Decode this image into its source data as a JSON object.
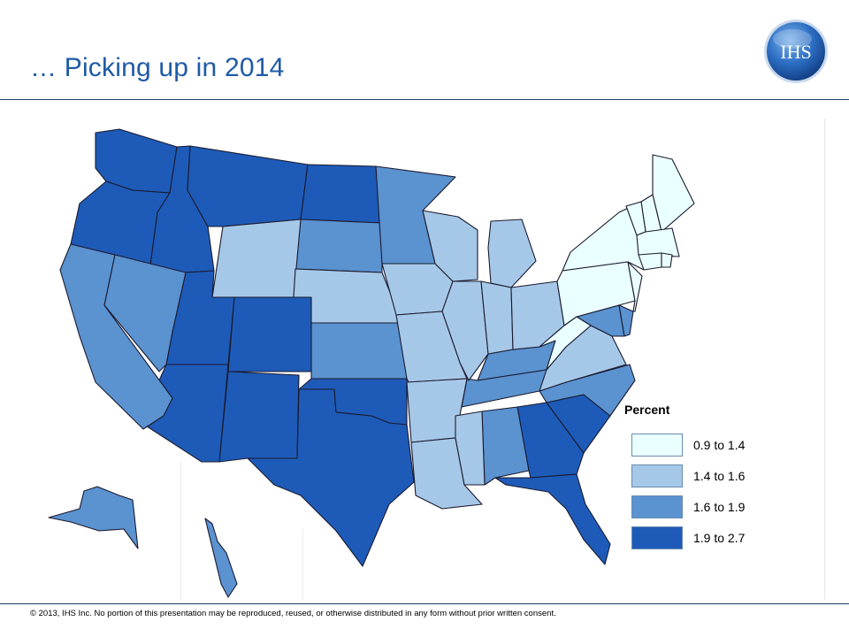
{
  "slide": {
    "title": "… Picking up in 2014",
    "logo_text": "IHS",
    "footer": "© 2013, IHS Inc. No portion of this presentation may be reproduced, reused, or otherwise distributed in any form without prior written consent."
  },
  "legend": {
    "title": "Percent",
    "items": [
      {
        "label": "0.9 to 1.4",
        "color": "#eaffff"
      },
      {
        "label": "1.4 to 1.6",
        "color": "#a6c8e8"
      },
      {
        "label": "1.6 to 1.9",
        "color": "#5b92d0"
      },
      {
        "label": "1.9 to 2.7",
        "color": "#1e5bb8"
      }
    ]
  },
  "map_data": {
    "type": "choropleth",
    "region": "United States",
    "boundary_color": "#1a1a2e",
    "states": {
      "WA": 3,
      "OR": 3,
      "ID": 3,
      "MT": 3,
      "ND": 3,
      "UT": 3,
      "CO": 3,
      "AZ": 3,
      "NM": 3,
      "TX": 3,
      "OK": 3,
      "GA": 3,
      "SC": 3,
      "FL": 3,
      "CA": 2,
      "NV": 2,
      "SD": 2,
      "MN": 2,
      "KS": 2,
      "AK": 2,
      "HI": 2,
      "KY": 2,
      "TN": 2,
      "AL": 2,
      "NC": 2,
      "MD": 2,
      "DE": 2,
      "WY": 1,
      "NE": 1,
      "IA": 1,
      "WI": 1,
      "MI": 1,
      "IL": 1,
      "IN": 1,
      "OH": 1,
      "MO": 1,
      "AR": 1,
      "LA": 1,
      "MS": 1,
      "VA": 1,
      "NY": 0,
      "PA": 0,
      "NJ": 0,
      "WV": 0,
      "ME": 0,
      "NH": 0,
      "VT": 0,
      "MA": 0,
      "CT": 0,
      "RI": 0
    }
  }
}
